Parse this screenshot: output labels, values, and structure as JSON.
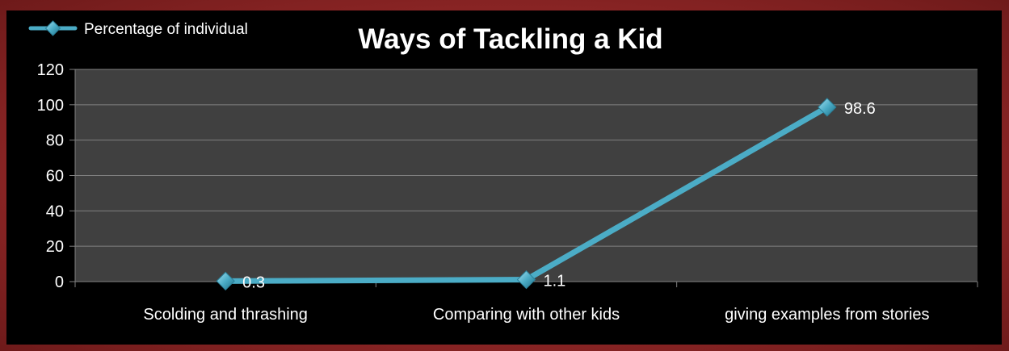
{
  "chart_data": {
    "type": "line",
    "title": "Ways of Tackling a Kid",
    "xlabel": "",
    "ylabel": "",
    "categories": [
      "Scolding and thrashing",
      "Comparing with other kids",
      "giving examples from stories"
    ],
    "series": [
      {
        "name": "Percentage of individual",
        "values": [
          0.3,
          1.1,
          98.6
        ],
        "data_labels": [
          "0.3",
          "1.1",
          "98.6"
        ]
      }
    ],
    "ylim": [
      0,
      120
    ],
    "yticks": [
      0,
      20,
      40,
      60,
      80,
      100,
      120
    ],
    "grid": true,
    "legend_position": "top-left",
    "colors": {
      "line": "#4bacc6",
      "marker": "#4bacc6",
      "plot_bg": "#404040",
      "grid": "#7f7f7f",
      "text": "#ffffff",
      "background": "#000000",
      "slide_bg": "#9b2c2c"
    }
  }
}
